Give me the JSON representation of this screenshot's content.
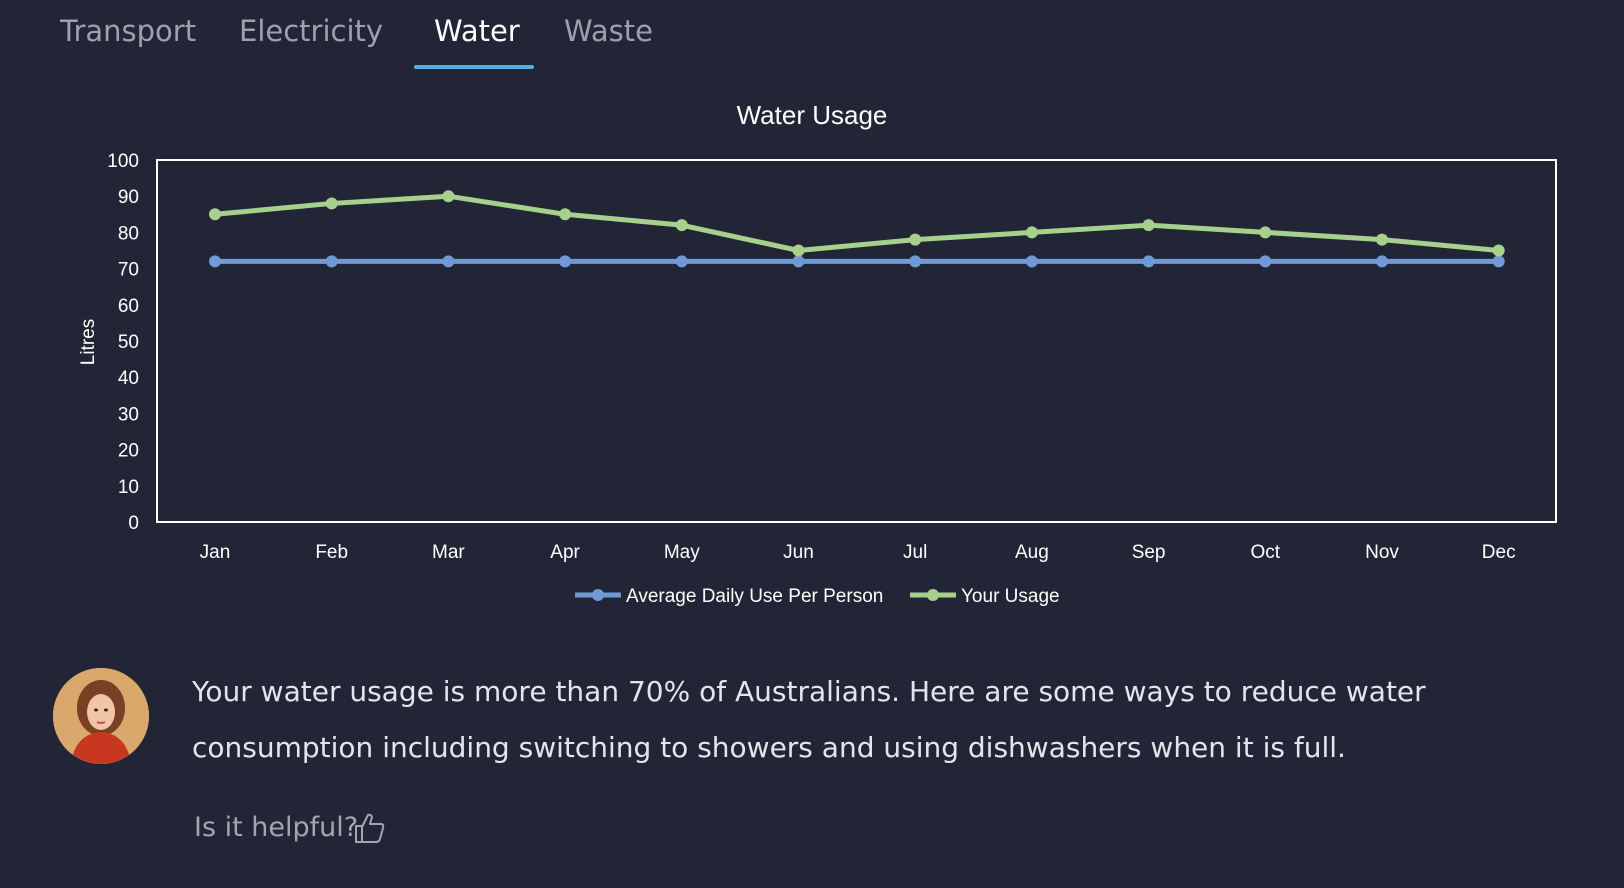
{
  "tabs": [
    {
      "label": "Transport",
      "active": false
    },
    {
      "label": "Electricity",
      "active": false
    },
    {
      "label": "Water",
      "active": true
    },
    {
      "label": "Waste",
      "active": false
    }
  ],
  "colors": {
    "background": "#222536",
    "accent": "#4fb1e8",
    "series_avg": "#6f9ad6",
    "series_you": "#a8d08d"
  },
  "chart_data": {
    "type": "line",
    "title": "Water Usage",
    "xlabel": "",
    "ylabel": "Litres",
    "ylim": [
      0,
      100
    ],
    "yticks": [
      0,
      10,
      20,
      30,
      40,
      50,
      60,
      70,
      80,
      90,
      100
    ],
    "categories": [
      "Jan",
      "Feb",
      "Mar",
      "Apr",
      "May",
      "Jun",
      "Jul",
      "Aug",
      "Sep",
      "Oct",
      "Nov",
      "Dec"
    ],
    "series": [
      {
        "name": "Average Daily Use Per Person",
        "values": [
          72,
          72,
          72,
          72,
          72,
          72,
          72,
          72,
          72,
          72,
          72,
          72
        ]
      },
      {
        "name": "Your Usage",
        "values": [
          85,
          88,
          90,
          85,
          82,
          75,
          78,
          80,
          82,
          80,
          78,
          75
        ]
      }
    ],
    "grid": false,
    "legend": "bottom"
  },
  "message": {
    "text": "Your water usage is more than 70% of Australians. Here are some ways to reduce water consumption including switching to showers and using dishwashers when it is full.",
    "avatar_icon": "user-avatar"
  },
  "feedback": {
    "prompt": "Is it helpful?",
    "icon": "thumbs-up-icon"
  }
}
